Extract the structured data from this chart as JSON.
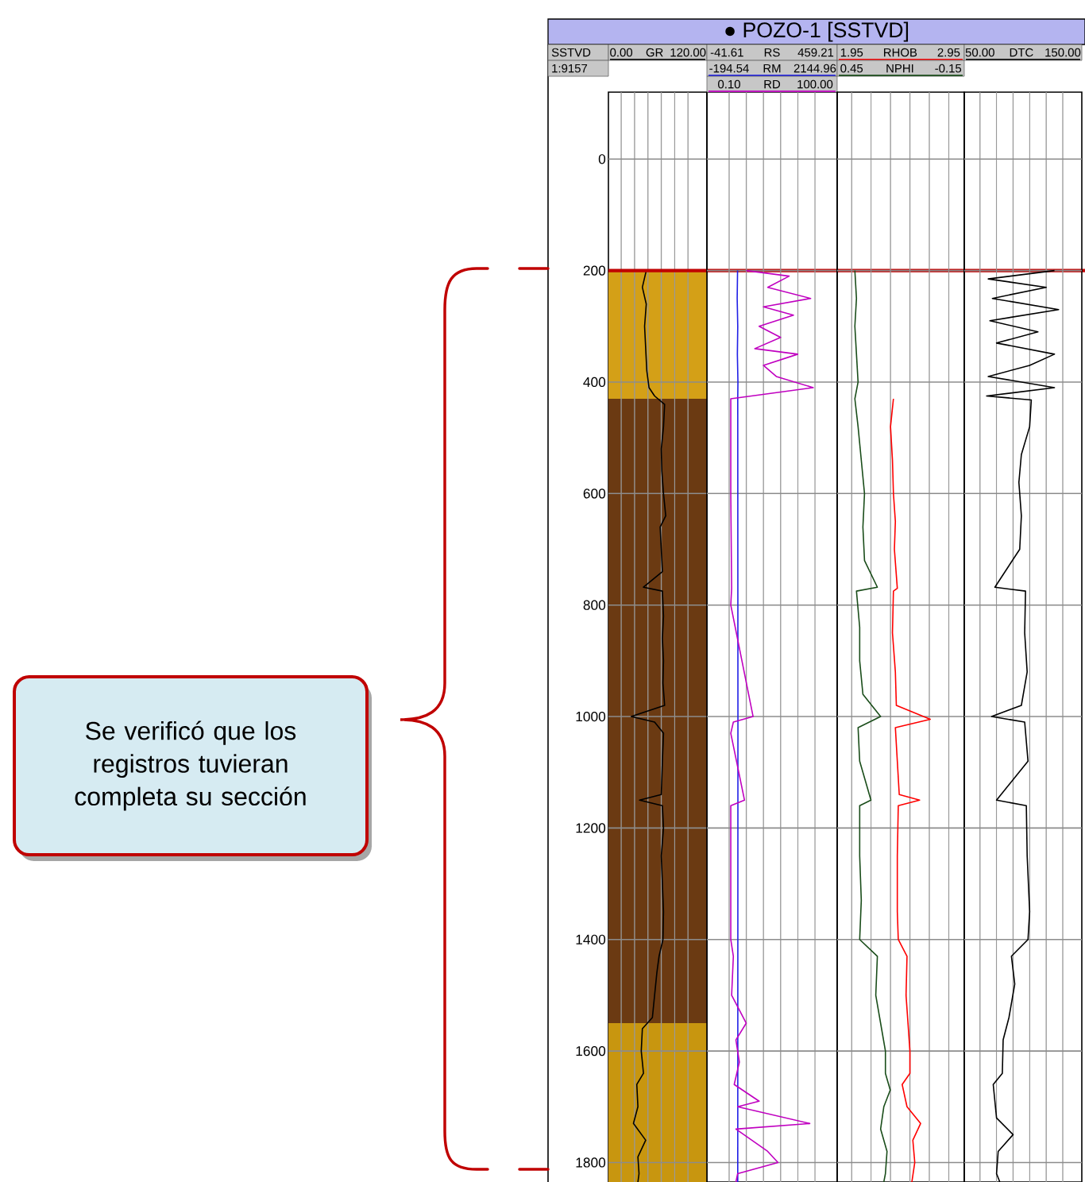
{
  "chart_data": [
    {
      "type": "line",
      "orientation": "horizontal",
      "ylabel": "SSTVD",
      "xlabel": "GR",
      "xlim": [
        -23,
        154
      ],
      "xticks": [
        {
          "value": 0,
          "label": "0.00"
        },
        {
          "value": 24,
          "label": null
        },
        {
          "value": 48,
          "label": null
        },
        {
          "value": 72,
          "label": null
        },
        {
          "value": 96,
          "label": null
        },
        {
          "value": 120,
          "label": "120.00"
        }
      ],
      "ylim": [
        1835,
        -120
      ],
      "yticks": [
        0,
        200,
        400,
        600,
        800,
        1000,
        1200,
        1400,
        1600,
        1800
      ],
      "grid": true,
      "annotations": [
        "1:9157",
        "Se verificó que los registros tuvieran completa su sección"
      ],
      "ref_lines": [
        {
          "axis": "y",
          "value": 200,
          "color": "#c00000"
        }
      ],
      "bands": [
        {
          "axis": "y",
          "from": 200,
          "to": 430,
          "color": "#d4a017"
        },
        {
          "axis": "y",
          "from": 430,
          "to": 1550,
          "color": "#6b3a12"
        },
        {
          "axis": "y",
          "from": 1550,
          "to": 1835,
          "color": "#c8960f"
        }
      ],
      "series": [
        {
          "color": "#000000",
          "x": [
            200,
            230,
            260,
            300,
            340,
            380,
            410,
            425,
            440,
            480,
            520,
            560,
            600,
            640,
            660,
            700,
            740,
            768,
            775,
            820,
            860,
            900,
            940,
            980,
            1000,
            1010,
            1030,
            1080,
            1140,
            1150,
            1160,
            1200,
            1250,
            1300,
            1350,
            1400,
            1430,
            1460,
            1500,
            1540,
            1560,
            1600,
            1640,
            1660,
            1700,
            1730,
            1760,
            1790,
            1820,
            1835
          ],
          "values": [
            45,
            38,
            45,
            42,
            44,
            46,
            50,
            60,
            78,
            76,
            72,
            73,
            76,
            80,
            70,
            72,
            74,
            40,
            74,
            76,
            74,
            76,
            75,
            78,
            18,
            60,
            76,
            74,
            72,
            33,
            74,
            76,
            72,
            74,
            76,
            75,
            68,
            64,
            60,
            56,
            38,
            36,
            40,
            28,
            30,
            22,
            44,
            30,
            32,
            30
          ]
        }
      ]
    },
    {
      "type": "line",
      "orientation": "horizontal",
      "tick_labels": "x",
      "title": "● POZO-1 [SSTVD]",
      "annotations": [
        "-41.61",
        "RS",
        "459.21"
      ],
      "xlabel": "RM",
      "xlim": [
        -801,
        2751
      ],
      "xticks": [
        {
          "value": -194.54,
          "label": "-194.54"
        },
        {
          "value": 273.36,
          "label": null
        },
        {
          "value": 741.26,
          "label": null
        },
        {
          "value": 1209.16,
          "label": null
        },
        {
          "value": 1677.06,
          "label": null
        },
        {
          "value": 2144.96,
          "label": "2144.96"
        }
      ],
      "x2label": "RD",
      "x2lim": [
        -25.8,
        125.9
      ],
      "x2ticks": [
        {
          "value": 0.1,
          "label": "0.10"
        },
        {
          "value": 100,
          "label": "100.00"
        }
      ],
      "ylim": [
        1835,
        -120
      ],
      "yticks": [
        0,
        200,
        400,
        600,
        800,
        1000,
        1200,
        1400,
        1600,
        1800
      ],
      "grid": true,
      "series": [
        {
          "color": "#1f1fe6",
          "x": [
            200,
            250,
            300,
            350,
            400,
            430,
            1000,
            1835
          ],
          "values": [
            35,
            25,
            40,
            30,
            45,
            40,
            45,
            40
          ]
        },
        {
          "color": "#c000c0",
          "axis": "x2",
          "x": [
            200,
            210,
            230,
            250,
            265,
            280,
            300,
            320,
            340,
            350,
            370,
            390,
            410,
            420,
            430,
            500,
            600,
            770,
            800,
            1000,
            1010,
            1030,
            1150,
            1160,
            1400,
            1430,
            1500,
            1550,
            1580,
            1620,
            1660,
            1690,
            1700,
            1730,
            1740,
            1780,
            1800,
            1820,
            1835
          ],
          "values": [
            20,
            70,
            45,
            95,
            40,
            75,
            35,
            60,
            30,
            80,
            40,
            55,
            98,
            50,
            2,
            2,
            2,
            3,
            2,
            28,
            5,
            2,
            18,
            2,
            2,
            5,
            3,
            20,
            8,
            12,
            6,
            35,
            10,
            94,
            8,
            45,
            57,
            10,
            8
          ]
        }
      ]
    },
    {
      "type": "line",
      "orientation": "horizontal",
      "tick_labels": "x",
      "xlabel": "RHOB",
      "xlim": [
        1.8,
        3.11
      ],
      "xticks": [
        {
          "value": 1.95,
          "label": "1.95"
        },
        {
          "value": 2.15,
          "label": null
        },
        {
          "value": 2.35,
          "label": null
        },
        {
          "value": 2.55,
          "label": null
        },
        {
          "value": 2.75,
          "label": null
        },
        {
          "value": 2.95,
          "label": "2.95"
        }
      ],
      "x2label": "NPHI",
      "x2lim": [
        0.54,
        -0.25
      ],
      "x2ticks": [
        {
          "value": 0.45,
          "label": "0.45"
        },
        {
          "value": -0.15,
          "label": "-0.15"
        }
      ],
      "ylim": [
        1835,
        -120
      ],
      "yticks": [
        0,
        200,
        400,
        600,
        800,
        1000,
        1200,
        1400,
        1600,
        1800
      ],
      "grid": true,
      "series": [
        {
          "color": "#ff0000",
          "x": [
            430,
            480,
            540,
            600,
            650,
            700,
            770,
            775,
            850,
            920,
            980,
            1005,
            1020,
            1080,
            1140,
            1150,
            1160,
            1250,
            1350,
            1400,
            1430,
            1500,
            1550,
            1600,
            1640,
            1660,
            1700,
            1730,
            1760,
            1800,
            1835
          ],
          "values": [
            2.38,
            2.35,
            2.37,
            2.38,
            2.4,
            2.39,
            2.42,
            2.38,
            2.37,
            2.4,
            2.41,
            2.76,
            2.4,
            2.42,
            2.44,
            2.65,
            2.43,
            2.42,
            2.42,
            2.43,
            2.52,
            2.51,
            2.53,
            2.55,
            2.55,
            2.47,
            2.52,
            2.66,
            2.58,
            2.6,
            2.57
          ]
        },
        {
          "color": "#1a4d1a",
          "axis": "x2",
          "x": [
            200,
            250,
            300,
            350,
            400,
            430,
            480,
            540,
            600,
            660,
            720,
            768,
            775,
            840,
            900,
            960,
            1000,
            1020,
            1080,
            1150,
            1160,
            1250,
            1330,
            1400,
            1430,
            1500,
            1550,
            1600,
            1640,
            1670,
            1700,
            1740,
            1780,
            1820,
            1835
          ],
          "values": [
            0.43,
            0.42,
            0.43,
            0.42,
            0.41,
            0.43,
            0.41,
            0.39,
            0.37,
            0.38,
            0.37,
            0.29,
            0.42,
            0.4,
            0.4,
            0.38,
            0.27,
            0.41,
            0.4,
            0.33,
            0.4,
            0.4,
            0.39,
            0.4,
            0.29,
            0.3,
            0.27,
            0.24,
            0.24,
            0.21,
            0.25,
            0.27,
            0.23,
            0.24,
            0.25
          ]
        }
      ]
    },
    {
      "type": "line",
      "orientation": "horizontal",
      "tick_labels": "x",
      "xlabel": "DTC",
      "xlim": [
        31,
        173
      ],
      "xticks": [
        {
          "value": 50,
          "label": "50.00"
        },
        {
          "value": 70,
          "label": null
        },
        {
          "value": 90,
          "label": null
        },
        {
          "value": 110,
          "label": null
        },
        {
          "value": 130,
          "label": null
        },
        {
          "value": 150,
          "label": "150.00"
        }
      ],
      "ylim": [
        1835,
        -120
      ],
      "yticks": [
        0,
        200,
        400,
        600,
        800,
        1000,
        1200,
        1400,
        1600,
        1800
      ],
      "grid": true,
      "series": [
        {
          "color": "#000000",
          "x": [
            200,
            215,
            230,
            250,
            270,
            290,
            310,
            330,
            350,
            370,
            390,
            410,
            425,
            432,
            480,
            530,
            580,
            640,
            700,
            768,
            775,
            850,
            920,
            980,
            1000,
            1010,
            1080,
            1150,
            1160,
            1250,
            1350,
            1400,
            1430,
            1480,
            1540,
            1580,
            1640,
            1660,
            1720,
            1750,
            1780,
            1820,
            1835
          ],
          "values": [
            140,
            60,
            130,
            65,
            145,
            62,
            120,
            70,
            140,
            110,
            60,
            140,
            58,
            112,
            110,
            100,
            97,
            100,
            98,
            68,
            105,
            104,
            107,
            100,
            64,
            104,
            108,
            70,
            106,
            107,
            110,
            108,
            88,
            92,
            85,
            78,
            77,
            66,
            70,
            90,
            72,
            70,
            74
          ]
        }
      ]
    }
  ]
}
